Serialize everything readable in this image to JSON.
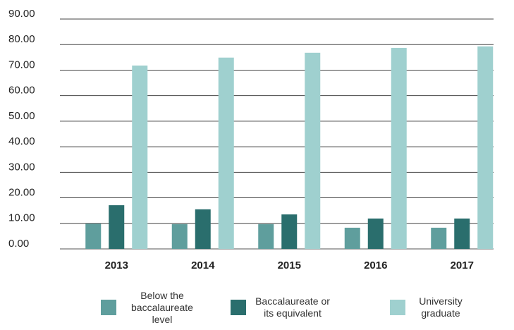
{
  "chart_data": {
    "type": "bar",
    "categories": [
      "2013",
      "2014",
      "2015",
      "2016",
      "2017"
    ],
    "series": [
      {
        "name": "Below the baccalaureate level",
        "color": "#5f9e9d",
        "values": [
          9.9,
          9.7,
          9.7,
          8.3,
          8.3
        ]
      },
      {
        "name": "Baccalaureate or its equivalent",
        "color": "#2a6e6d",
        "values": [
          17.1,
          15.5,
          13.5,
          11.9,
          11.9
        ]
      },
      {
        "name": "University graduate",
        "color": "#9fd0cf",
        "values": [
          71.8,
          74.9,
          76.8,
          78.7,
          79.3
        ]
      }
    ],
    "ylim": [
      0,
      90
    ],
    "yticks": [
      {
        "value": 0,
        "label": "0.00"
      },
      {
        "value": 10,
        "label": "10.00"
      },
      {
        "value": 20,
        "label": "20.00"
      },
      {
        "value": 30,
        "label": "30.00"
      },
      {
        "value": 40,
        "label": "40.00"
      },
      {
        "value": 50,
        "label": "50.00"
      },
      {
        "value": 60,
        "label": "60.00"
      },
      {
        "value": 70,
        "label": "70.00"
      },
      {
        "value": 80,
        "label": "80.00"
      },
      {
        "value": 90,
        "label": "90.00"
      }
    ],
    "grid": true,
    "legend": "bottom"
  }
}
